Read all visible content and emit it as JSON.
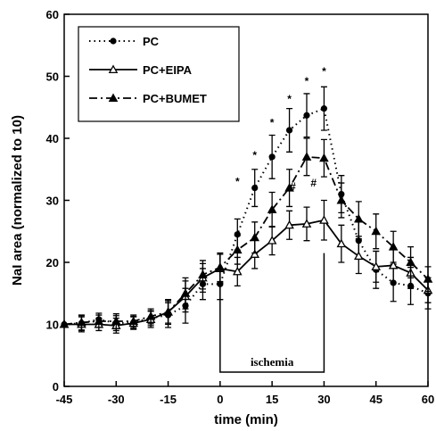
{
  "chart_data": {
    "type": "line",
    "xlabel": "time (min)",
    "ylabel": "NaI area (normalized to 10)",
    "xlim": [
      -45,
      60
    ],
    "ylim": [
      0,
      60
    ],
    "xticks": [
      -45,
      -30,
      -15,
      0,
      15,
      30,
      45,
      60
    ],
    "yticks": [
      0,
      10,
      20,
      30,
      40,
      50,
      60
    ],
    "grid": false,
    "legend_position": "top-left",
    "series": [
      {
        "name": "PC",
        "marker": "circle",
        "line": "dotted",
        "points": [
          {
            "x": -45,
            "y": 10,
            "err": 0
          },
          {
            "x": -40,
            "y": 10.2,
            "err": 1.2
          },
          {
            "x": -35,
            "y": 10.8,
            "err": 1.0
          },
          {
            "x": -30,
            "y": 10.2,
            "err": 1.2
          },
          {
            "x": -25,
            "y": 10.3,
            "err": 1.0
          },
          {
            "x": -20,
            "y": 11.0,
            "err": 1.2
          },
          {
            "x": -15,
            "y": 11.5,
            "err": 2.0
          },
          {
            "x": -10,
            "y": 13.0,
            "err": 2.8
          },
          {
            "x": -5,
            "y": 16.5,
            "err": 2.5
          },
          {
            "x": 0,
            "y": 16.5,
            "err": 2.5
          },
          {
            "x": 5,
            "y": 24.5,
            "err": 2.5
          },
          {
            "x": 10,
            "y": 32.0,
            "err": 3.0
          },
          {
            "x": 15,
            "y": 37.0,
            "err": 3.5
          },
          {
            "x": 20,
            "y": 41.3,
            "err": 3.5
          },
          {
            "x": 25,
            "y": 43.7,
            "err": 3.5
          },
          {
            "x": 30,
            "y": 44.8,
            "err": 3.5
          },
          {
            "x": 35,
            "y": 31.0,
            "err": 3.0
          },
          {
            "x": 40,
            "y": 23.5,
            "err": 3.0
          },
          {
            "x": 45,
            "y": 18.8,
            "err": 3.0
          },
          {
            "x": 50,
            "y": 16.7,
            "err": 3.0
          },
          {
            "x": 55,
            "y": 16.2,
            "err": 3.0
          },
          {
            "x": 60,
            "y": 15.0,
            "err": 2.5
          }
        ]
      },
      {
        "name": "PC+EIPA",
        "marker": "open-triangle",
        "line": "solid",
        "points": [
          {
            "x": -45,
            "y": 10,
            "err": 0
          },
          {
            "x": -40,
            "y": 10.0,
            "err": 1.2
          },
          {
            "x": -35,
            "y": 10.0,
            "err": 1.0
          },
          {
            "x": -30,
            "y": 9.8,
            "err": 1.2
          },
          {
            "x": -25,
            "y": 10.2,
            "err": 1.0
          },
          {
            "x": -20,
            "y": 10.8,
            "err": 1.3
          },
          {
            "x": -15,
            "y": 12.0,
            "err": 1.8
          },
          {
            "x": -10,
            "y": 14.5,
            "err": 2.5
          },
          {
            "x": -5,
            "y": 17.5,
            "err": 2.3
          },
          {
            "x": 0,
            "y": 19.0,
            "err": 2.3
          },
          {
            "x": 5,
            "y": 18.5,
            "err": 2.3
          },
          {
            "x": 10,
            "y": 21.3,
            "err": 2.3
          },
          {
            "x": 15,
            "y": 23.5,
            "err": 2.3
          },
          {
            "x": 20,
            "y": 26.0,
            "err": 2.3
          },
          {
            "x": 25,
            "y": 26.2,
            "err": 2.7
          },
          {
            "x": 30,
            "y": 26.8,
            "err": 3.2
          },
          {
            "x": 35,
            "y": 23.0,
            "err": 3.0
          },
          {
            "x": 40,
            "y": 21.0,
            "err": 2.8
          },
          {
            "x": 45,
            "y": 19.3,
            "err": 2.5
          },
          {
            "x": 50,
            "y": 19.5,
            "err": 2.8
          },
          {
            "x": 55,
            "y": 18.3,
            "err": 2.5
          },
          {
            "x": 60,
            "y": 15.5,
            "err": 2.0
          }
        ]
      },
      {
        "name": "PC+BUMET",
        "marker": "filled-triangle",
        "line": "dash-dot",
        "points": [
          {
            "x": -45,
            "y": 10,
            "err": 0
          },
          {
            "x": -40,
            "y": 10.3,
            "err": 1.2
          },
          {
            "x": -35,
            "y": 10.5,
            "err": 1.0
          },
          {
            "x": -30,
            "y": 10.5,
            "err": 1.2
          },
          {
            "x": -25,
            "y": 10.5,
            "err": 1.0
          },
          {
            "x": -20,
            "y": 11.3,
            "err": 1.2
          },
          {
            "x": -15,
            "y": 12.0,
            "err": 2.0
          },
          {
            "x": -10,
            "y": 15.0,
            "err": 2.5
          },
          {
            "x": -5,
            "y": 18.0,
            "err": 2.3
          },
          {
            "x": 0,
            "y": 19.2,
            "err": 2.3
          },
          {
            "x": 5,
            "y": 22.0,
            "err": 2.3
          },
          {
            "x": 10,
            "y": 24.0,
            "err": 2.5
          },
          {
            "x": 15,
            "y": 28.5,
            "err": 2.8
          },
          {
            "x": 20,
            "y": 32.0,
            "err": 3.0
          },
          {
            "x": 25,
            "y": 37.0,
            "err": 3.0
          },
          {
            "x": 30,
            "y": 36.8,
            "err": 3.0
          },
          {
            "x": 35,
            "y": 30.0,
            "err": 2.8
          },
          {
            "x": 40,
            "y": 27.0,
            "err": 2.8
          },
          {
            "x": 45,
            "y": 25.0,
            "err": 2.8
          },
          {
            "x": 50,
            "y": 22.5,
            "err": 2.5
          },
          {
            "x": 55,
            "y": 20.0,
            "err": 2.5
          },
          {
            "x": 60,
            "y": 17.3,
            "err": 2.0
          }
        ]
      }
    ],
    "significance_markers": [
      {
        "symbol": "*",
        "x": 5,
        "y": 33.0
      },
      {
        "symbol": "*",
        "x": 10,
        "y": 37.3
      },
      {
        "symbol": "*",
        "x": 15,
        "y": 42.5
      },
      {
        "symbol": "*",
        "x": 20,
        "y": 46.3
      },
      {
        "symbol": "*",
        "x": 25,
        "y": 49.2
      },
      {
        "symbol": "*",
        "x": 30,
        "y": 50.8
      },
      {
        "symbol": "#",
        "x": 21,
        "y": 32.2
      },
      {
        "symbol": "#",
        "x": 27,
        "y": 32.8
      }
    ],
    "ischemia": {
      "label": "ischemia",
      "x_start": 0,
      "x_end": 30,
      "y_bottom": 2.3,
      "y_top": 21.5
    }
  }
}
